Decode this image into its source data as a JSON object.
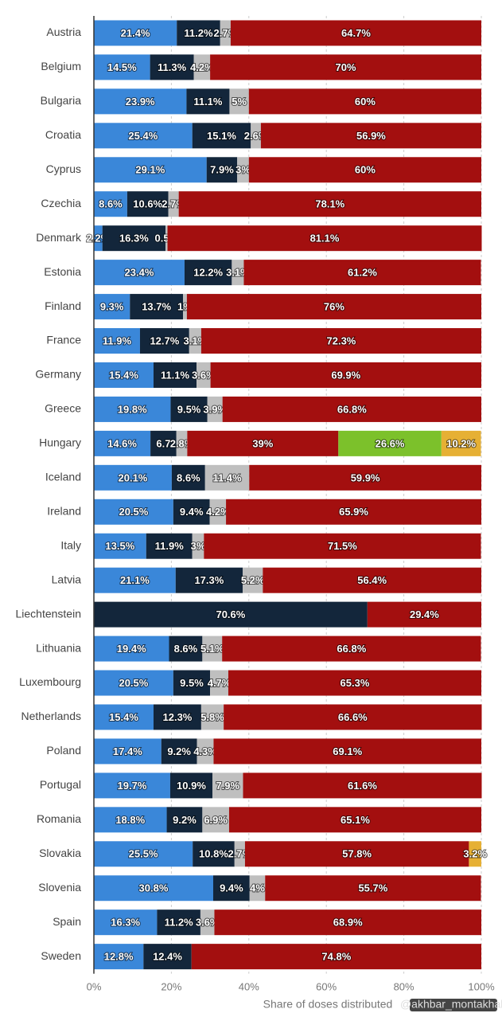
{
  "chart_data": {
    "type": "stacked-bar-horizontal",
    "categories": [
      "Austria",
      "Belgium",
      "Bulgaria",
      "Croatia",
      "Cyprus",
      "Czechia",
      "Denmark",
      "Estonia",
      "Finland",
      "France",
      "Germany",
      "Greece",
      "Hungary",
      "Iceland",
      "Ireland",
      "Italy",
      "Latvia",
      "Liechtenstein",
      "Lithuania",
      "Luxembourg",
      "Netherlands",
      "Poland",
      "Portugal",
      "Romania",
      "Slovakia",
      "Slovenia",
      "Spain",
      "Sweden"
    ],
    "series": [
      {
        "color": "#3a87d9",
        "values": [
          21.4,
          14.5,
          23.9,
          25.4,
          29.1,
          8.6,
          2.2,
          23.4,
          9.3,
          11.9,
          15.4,
          19.8,
          14.6,
          20.1,
          20.5,
          13.5,
          21.1,
          null,
          19.4,
          20.5,
          15.4,
          17.4,
          19.7,
          18.8,
          25.5,
          30.8,
          16.3,
          12.8
        ],
        "value_labels": [
          "21.4%",
          "14.5%",
          "23.9%",
          "25.4%",
          "29.1%",
          "8.6%",
          "2.2%",
          "23.4%",
          "9.3%",
          "11.9%",
          "15.4%",
          "19.8%",
          "14.6%",
          "20.1%",
          "20.5%",
          "13.5%",
          "21.1%",
          null,
          "19.4%",
          "20.5%",
          "15.4%",
          "17.4%",
          "19.7%",
          "18.8%",
          "25.5%",
          "30.8%",
          "16.3%",
          "12.8%"
        ]
      },
      {
        "color": "#13263b",
        "values": [
          11.2,
          11.3,
          11.1,
          15.1,
          7.9,
          10.6,
          16.3,
          12.2,
          13.7,
          12.7,
          11.1,
          9.5,
          6.7,
          8.6,
          9.4,
          11.9,
          17.3,
          70.6,
          8.6,
          9.5,
          12.3,
          9.2,
          10.9,
          9.2,
          10.8,
          9.4,
          11.2,
          12.4
        ],
        "value_labels": [
          "11.2%",
          "11.3%",
          "11.1%",
          "15.1%",
          "7.9%",
          "10.6%",
          "16.3%",
          "12.2%",
          "13.7%",
          "12.7%",
          "11.1%",
          "9.5%",
          "6.7",
          "8.6%",
          "9.4%",
          "11.9%",
          "17.3%",
          "70.6%",
          "8.6%",
          "9.5%",
          "12.3%",
          "9.2%",
          "10.9%",
          "9.2%",
          "10.8%",
          "9.4%",
          "11.2%",
          "12.4%"
        ]
      },
      {
        "color": "#bfbfbf",
        "values": [
          2.7,
          4.2,
          5,
          2.6,
          3,
          2.7,
          0.5,
          3.1,
          1,
          3.1,
          3.6,
          3.9,
          2.8,
          11.4,
          4.2,
          3,
          5.2,
          null,
          5.1,
          4.7,
          5.8,
          4.3,
          7.9,
          6.9,
          2.7,
          4,
          3.6,
          null
        ],
        "value_labels": [
          "2.7%",
          "4.2%",
          "5%",
          "2.6%",
          "3%",
          "2.7%",
          "0.5%",
          "3.1%",
          "1%",
          "3.1%",
          "3.6%",
          "3.9%",
          "2.8%",
          "11.4%",
          "4.2%",
          "3%",
          "5.2%",
          null,
          "5.1%",
          "4.7%",
          "5.8%",
          "4.3%",
          "7.9%",
          "6.9%",
          "2.7%",
          "4%",
          "3.6%",
          null
        ]
      },
      {
        "color": "#a30f0f",
        "values": [
          64.7,
          70,
          60,
          56.9,
          60,
          78.1,
          81.1,
          61.2,
          76,
          72.3,
          69.9,
          66.8,
          39,
          59.9,
          65.9,
          71.5,
          56.4,
          29.4,
          66.8,
          65.3,
          66.6,
          69.1,
          61.6,
          65.1,
          57.8,
          55.7,
          68.9,
          74.8
        ],
        "value_labels": [
          "64.7%",
          "70%",
          "60%",
          "56.9%",
          "60%",
          "78.1%",
          "81.1%",
          "61.2%",
          "76%",
          "72.3%",
          "69.9%",
          "66.8%",
          "39%",
          "59.9%",
          "65.9%",
          "71.5%",
          "56.4%",
          "29.4%",
          "66.8%",
          "65.3%",
          "66.6%",
          "69.1%",
          "61.6%",
          "65.1%",
          "57.8%",
          "55.7%",
          "68.9%",
          "74.8%"
        ]
      },
      {
        "color": "#7cc12b",
        "values": [
          null,
          null,
          null,
          null,
          null,
          null,
          null,
          null,
          null,
          null,
          null,
          null,
          26.6,
          null,
          null,
          null,
          null,
          null,
          null,
          null,
          null,
          null,
          null,
          null,
          null,
          null,
          null,
          null
        ],
        "value_labels": [
          null,
          null,
          null,
          null,
          null,
          null,
          null,
          null,
          null,
          null,
          null,
          null,
          "26.6%",
          null,
          null,
          null,
          null,
          null,
          null,
          null,
          null,
          null,
          null,
          null,
          null,
          null,
          null,
          null
        ]
      },
      {
        "color": "#e6b034",
        "values": [
          null,
          null,
          null,
          null,
          null,
          null,
          null,
          null,
          null,
          null,
          null,
          null,
          10.2,
          null,
          null,
          null,
          null,
          null,
          null,
          null,
          null,
          null,
          null,
          null,
          3.2,
          null,
          null,
          null
        ],
        "value_labels": [
          null,
          null,
          null,
          null,
          null,
          null,
          null,
          null,
          null,
          null,
          null,
          null,
          "10.2%",
          null,
          null,
          null,
          null,
          null,
          null,
          null,
          null,
          null,
          null,
          null,
          "3.2%",
          null,
          null,
          null
        ]
      }
    ],
    "xlim": [
      0,
      100
    ],
    "xticks": [
      {
        "value": 0,
        "label": "0%"
      },
      {
        "value": 20,
        "label": "20%"
      },
      {
        "value": 40,
        "label": "40%"
      },
      {
        "value": 60,
        "label": "60%"
      },
      {
        "value": 80,
        "label": "80%"
      },
      {
        "value": 100,
        "label": "100%"
      }
    ],
    "x_label": "Share of doses distributed",
    "watermark": "@akhbar_montakhab",
    "grid": true
  }
}
